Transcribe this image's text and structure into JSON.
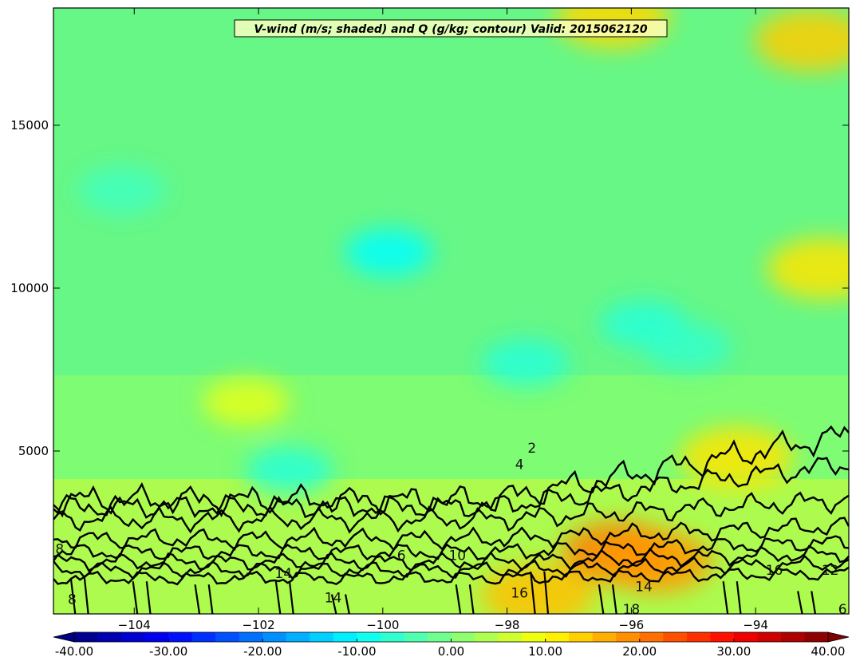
{
  "chart_data": {
    "type": "heatmap",
    "title": "V-wind (m/s; shaded) and Q (g/kg; contour) Valid: 2015062120",
    "xlabel": "",
    "ylabel": "",
    "xlim": [
      -105.3,
      -92.5
    ],
    "ylim": [
      0,
      18600
    ],
    "x_ticks": [
      -104,
      -102,
      -100,
      -98,
      -96,
      -94
    ],
    "x_tick_labels": [
      "−104",
      "−102",
      "−100",
      "−98",
      "−96",
      "−94"
    ],
    "y_ticks": [
      5000,
      10000,
      15000
    ],
    "y_tick_labels": [
      "5000",
      "10000",
      "15000"
    ],
    "shading": {
      "variable": "V-wind",
      "units": "m/s",
      "range": [
        -40,
        40
      ],
      "colormap": "jet",
      "features": [
        {
          "x": -99.9,
          "y": 11100,
          "value": -10
        },
        {
          "x": -97.7,
          "y": 7700,
          "value": -7
        },
        {
          "x": -95.8,
          "y": 8900,
          "value": -7
        },
        {
          "x": -95.1,
          "y": 8200,
          "value": -6
        },
        {
          "x": -101.5,
          "y": 4400,
          "value": -7
        },
        {
          "x": -104.2,
          "y": 13000,
          "value": -5
        },
        {
          "x": -102.2,
          "y": 6500,
          "value": 8
        },
        {
          "x": -96.2,
          "y": 1900,
          "value": 20
        },
        {
          "x": -95.6,
          "y": 1600,
          "value": 18
        },
        {
          "x": -93.1,
          "y": 17600,
          "value": 14
        },
        {
          "x": -96.3,
          "y": 18300,
          "value": 13
        },
        {
          "x": -92.9,
          "y": 10600,
          "value": 12
        },
        {
          "x": -97.5,
          "y": 600,
          "value": 15
        },
        {
          "x": -94.3,
          "y": 4800,
          "value": 12
        }
      ]
    },
    "contours": {
      "variable": "Q",
      "units": "g/kg",
      "labels": [
        {
          "text": "2",
          "x": -97.6,
          "y": 5100
        },
        {
          "text": "4",
          "x": -97.8,
          "y": 4600
        },
        {
          "text": "6",
          "x": -99.7,
          "y": 1800
        },
        {
          "text": "6",
          "x": -92.6,
          "y": 150
        },
        {
          "text": "8",
          "x": -105.2,
          "y": 2000
        },
        {
          "text": "8",
          "x": -105.0,
          "y": 450
        },
        {
          "text": "10",
          "x": -98.8,
          "y": 1800
        },
        {
          "text": "12",
          "x": -92.8,
          "y": 1350
        },
        {
          "text": "14",
          "x": -101.6,
          "y": 1250
        },
        {
          "text": "14",
          "x": -100.8,
          "y": 500
        },
        {
          "text": "14",
          "x": -95.8,
          "y": 850
        },
        {
          "text": "16",
          "x": -97.8,
          "y": 650
        },
        {
          "text": "16",
          "x": -93.7,
          "y": 1350
        },
        {
          "text": "18",
          "x": -96.0,
          "y": 150
        }
      ]
    },
    "colorbar": {
      "ticks": [
        -40,
        -30,
        -20,
        -10,
        0,
        10,
        20,
        30,
        40
      ],
      "tick_labels": [
        "-40.00",
        "-30.00",
        "-20.00",
        "-10.00",
        "0.00",
        "10.00",
        "20.00",
        "30.00",
        "40.00"
      ],
      "extend": "both",
      "placement": "bottom"
    }
  }
}
